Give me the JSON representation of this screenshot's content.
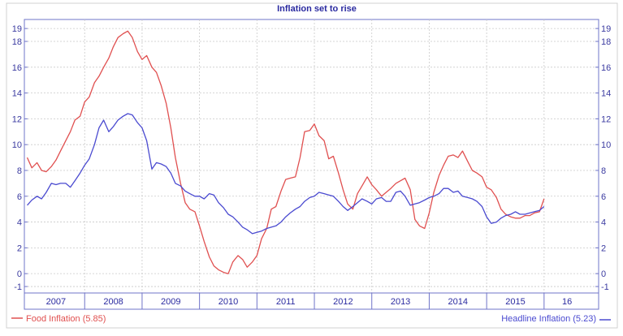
{
  "chart_data": {
    "type": "line",
    "title": "Inflation set to rise",
    "xlabel": "",
    "ylabel": "",
    "x_range": [
      2006.2,
      2016.2
    ],
    "ylim": [
      -1.5,
      19.7
    ],
    "y_ticks": [
      -1,
      0,
      2,
      4,
      6,
      8,
      10,
      12,
      14,
      16,
      18,
      19
    ],
    "y_tick_labels": [
      "-1",
      "0",
      "2",
      "4",
      "6",
      "8",
      "10",
      "12",
      "14",
      "16",
      "18",
      "19"
    ],
    "year_labels": [
      {
        "label": "2007",
        "x": 2006.75
      },
      {
        "label": "2008",
        "x": 2007.75
      },
      {
        "label": "2009",
        "x": 2008.75
      },
      {
        "label": "2010",
        "x": 2009.75
      },
      {
        "label": "2011",
        "x": 2010.75
      },
      {
        "label": "2012",
        "x": 2011.75
      },
      {
        "label": "2013",
        "x": 2012.75
      },
      {
        "label": "2014",
        "x": 2013.75
      },
      {
        "label": "2015",
        "x": 2014.75
      },
      {
        "label": "16",
        "x": 2015.65
      }
    ],
    "year_boundaries": [
      2007.25,
      2008.25,
      2009.25,
      2010.25,
      2011.25,
      2012.25,
      2013.25,
      2014.25,
      2015.25
    ],
    "grid": true,
    "legend_position": "bottom",
    "series": [
      {
        "name": "Food Inflation",
        "legend_label": "Food Inflation (5.85)",
        "color": "#e05050",
        "points": [
          [
            2006.25,
            9.0
          ],
          [
            2006.33,
            8.2
          ],
          [
            2006.42,
            8.6
          ],
          [
            2006.5,
            8.0
          ],
          [
            2006.58,
            7.9
          ],
          [
            2006.67,
            8.3
          ],
          [
            2006.75,
            8.8
          ],
          [
            2006.83,
            9.5
          ],
          [
            2006.92,
            10.3
          ],
          [
            2007.0,
            11.0
          ],
          [
            2007.08,
            11.9
          ],
          [
            2007.17,
            12.2
          ],
          [
            2007.25,
            13.3
          ],
          [
            2007.33,
            13.7
          ],
          [
            2007.42,
            14.8
          ],
          [
            2007.5,
            15.3
          ],
          [
            2007.58,
            16.0
          ],
          [
            2007.67,
            16.7
          ],
          [
            2007.75,
            17.6
          ],
          [
            2007.83,
            18.3
          ],
          [
            2007.92,
            18.6
          ],
          [
            2008.0,
            18.8
          ],
          [
            2008.08,
            18.3
          ],
          [
            2008.17,
            17.2
          ],
          [
            2008.25,
            16.6
          ],
          [
            2008.33,
            16.9
          ],
          [
            2008.42,
            16.0
          ],
          [
            2008.5,
            15.6
          ],
          [
            2008.58,
            14.6
          ],
          [
            2008.67,
            13.2
          ],
          [
            2008.75,
            11.3
          ],
          [
            2008.83,
            9.0
          ],
          [
            2008.92,
            7.0
          ],
          [
            2009.0,
            5.5
          ],
          [
            2009.08,
            5.0
          ],
          [
            2009.17,
            4.8
          ],
          [
            2009.25,
            3.7
          ],
          [
            2009.33,
            2.5
          ],
          [
            2009.42,
            1.3
          ],
          [
            2009.5,
            0.6
          ],
          [
            2009.58,
            0.3
          ],
          [
            2009.67,
            0.1
          ],
          [
            2009.75,
            0.0
          ],
          [
            2009.83,
            0.9
          ],
          [
            2009.92,
            1.4
          ],
          [
            2010.0,
            1.1
          ],
          [
            2010.08,
            0.5
          ],
          [
            2010.17,
            0.9
          ],
          [
            2010.25,
            1.4
          ],
          [
            2010.33,
            2.7
          ],
          [
            2010.42,
            3.5
          ],
          [
            2010.5,
            5.0
          ],
          [
            2010.58,
            5.2
          ],
          [
            2010.67,
            6.4
          ],
          [
            2010.75,
            7.3
          ],
          [
            2010.83,
            7.4
          ],
          [
            2010.92,
            7.5
          ],
          [
            2011.0,
            9.0
          ],
          [
            2011.08,
            11.0
          ],
          [
            2011.17,
            11.1
          ],
          [
            2011.25,
            11.6
          ],
          [
            2011.33,
            10.7
          ],
          [
            2011.42,
            10.3
          ],
          [
            2011.5,
            8.9
          ],
          [
            2011.58,
            9.1
          ],
          [
            2011.67,
            7.8
          ],
          [
            2011.75,
            6.5
          ],
          [
            2011.83,
            5.4
          ],
          [
            2011.92,
            5.0
          ],
          [
            2012.0,
            6.2
          ],
          [
            2012.08,
            6.8
          ],
          [
            2012.17,
            7.5
          ],
          [
            2012.25,
            6.9
          ],
          [
            2012.33,
            6.5
          ],
          [
            2012.42,
            6.0
          ],
          [
            2012.5,
            6.3
          ],
          [
            2012.58,
            6.6
          ],
          [
            2012.67,
            7.0
          ],
          [
            2012.75,
            7.2
          ],
          [
            2012.83,
            7.4
          ],
          [
            2012.92,
            6.5
          ],
          [
            2013.0,
            4.2
          ],
          [
            2013.08,
            3.7
          ],
          [
            2013.17,
            3.5
          ],
          [
            2013.25,
            4.7
          ],
          [
            2013.33,
            6.3
          ],
          [
            2013.42,
            7.6
          ],
          [
            2013.5,
            8.4
          ],
          [
            2013.58,
            9.1
          ],
          [
            2013.67,
            9.2
          ],
          [
            2013.75,
            9.0
          ],
          [
            2013.83,
            9.5
          ],
          [
            2013.92,
            8.7
          ],
          [
            2014.0,
            8.0
          ],
          [
            2014.08,
            7.8
          ],
          [
            2014.17,
            7.5
          ],
          [
            2014.25,
            6.7
          ],
          [
            2014.33,
            6.5
          ],
          [
            2014.42,
            5.9
          ],
          [
            2014.5,
            5.0
          ],
          [
            2014.58,
            4.6
          ],
          [
            2014.67,
            4.4
          ],
          [
            2014.75,
            4.3
          ],
          [
            2014.83,
            4.3
          ],
          [
            2014.92,
            4.5
          ],
          [
            2015.0,
            4.5
          ],
          [
            2015.08,
            4.7
          ],
          [
            2015.17,
            4.8
          ],
          [
            2015.25,
            5.8
          ]
        ]
      },
      {
        "name": "Headline Inflation",
        "legend_label": "Headline Inflation (5.23)",
        "color": "#4a4ad0",
        "points": [
          [
            2006.25,
            5.3
          ],
          [
            2006.33,
            5.7
          ],
          [
            2006.42,
            6.0
          ],
          [
            2006.5,
            5.8
          ],
          [
            2006.58,
            6.3
          ],
          [
            2006.67,
            7.0
          ],
          [
            2006.75,
            6.9
          ],
          [
            2006.83,
            7.0
          ],
          [
            2006.92,
            7.0
          ],
          [
            2007.0,
            6.7
          ],
          [
            2007.08,
            7.2
          ],
          [
            2007.17,
            7.8
          ],
          [
            2007.25,
            8.4
          ],
          [
            2007.33,
            8.9
          ],
          [
            2007.42,
            10.0
          ],
          [
            2007.5,
            11.3
          ],
          [
            2007.58,
            11.9
          ],
          [
            2007.67,
            11.0
          ],
          [
            2007.75,
            11.4
          ],
          [
            2007.83,
            11.9
          ],
          [
            2007.92,
            12.2
          ],
          [
            2008.0,
            12.4
          ],
          [
            2008.08,
            12.3
          ],
          [
            2008.17,
            11.7
          ],
          [
            2008.25,
            11.3
          ],
          [
            2008.33,
            10.3
          ],
          [
            2008.42,
            8.1
          ],
          [
            2008.5,
            8.6
          ],
          [
            2008.58,
            8.5
          ],
          [
            2008.67,
            8.3
          ],
          [
            2008.75,
            7.8
          ],
          [
            2008.83,
            7.0
          ],
          [
            2008.92,
            6.8
          ],
          [
            2009.0,
            6.4
          ],
          [
            2009.08,
            6.2
          ],
          [
            2009.17,
            6.0
          ],
          [
            2009.25,
            6.0
          ],
          [
            2009.33,
            5.8
          ],
          [
            2009.42,
            6.2
          ],
          [
            2009.5,
            6.1
          ],
          [
            2009.58,
            5.5
          ],
          [
            2009.67,
            5.1
          ],
          [
            2009.75,
            4.6
          ],
          [
            2009.83,
            4.4
          ],
          [
            2009.92,
            4.0
          ],
          [
            2010.0,
            3.6
          ],
          [
            2010.08,
            3.4
          ],
          [
            2010.17,
            3.1
          ],
          [
            2010.25,
            3.2
          ],
          [
            2010.33,
            3.3
          ],
          [
            2010.42,
            3.5
          ],
          [
            2010.5,
            3.6
          ],
          [
            2010.58,
            3.7
          ],
          [
            2010.67,
            4.0
          ],
          [
            2010.75,
            4.4
          ],
          [
            2010.83,
            4.7
          ],
          [
            2010.92,
            5.0
          ],
          [
            2011.0,
            5.2
          ],
          [
            2011.08,
            5.6
          ],
          [
            2011.17,
            5.9
          ],
          [
            2011.25,
            6.0
          ],
          [
            2011.33,
            6.3
          ],
          [
            2011.42,
            6.2
          ],
          [
            2011.5,
            6.1
          ],
          [
            2011.58,
            6.0
          ],
          [
            2011.67,
            5.6
          ],
          [
            2011.75,
            5.2
          ],
          [
            2011.83,
            4.9
          ],
          [
            2011.92,
            5.2
          ],
          [
            2012.0,
            5.5
          ],
          [
            2012.08,
            5.8
          ],
          [
            2012.17,
            5.6
          ],
          [
            2012.25,
            5.4
          ],
          [
            2012.33,
            5.8
          ],
          [
            2012.42,
            5.9
          ],
          [
            2012.5,
            5.6
          ],
          [
            2012.58,
            5.6
          ],
          [
            2012.67,
            6.3
          ],
          [
            2012.75,
            6.4
          ],
          [
            2012.83,
            6.0
          ],
          [
            2012.92,
            5.3
          ],
          [
            2013.0,
            5.4
          ],
          [
            2013.08,
            5.5
          ],
          [
            2013.17,
            5.7
          ],
          [
            2013.25,
            5.9
          ],
          [
            2013.33,
            6.0
          ],
          [
            2013.42,
            6.2
          ],
          [
            2013.5,
            6.6
          ],
          [
            2013.58,
            6.6
          ],
          [
            2013.67,
            6.3
          ],
          [
            2013.75,
            6.4
          ],
          [
            2013.83,
            6.0
          ],
          [
            2013.92,
            5.9
          ],
          [
            2014.0,
            5.8
          ],
          [
            2014.08,
            5.6
          ],
          [
            2014.17,
            5.2
          ],
          [
            2014.25,
            4.4
          ],
          [
            2014.33,
            3.9
          ],
          [
            2014.42,
            4.0
          ],
          [
            2014.5,
            4.3
          ],
          [
            2014.58,
            4.5
          ],
          [
            2014.67,
            4.6
          ],
          [
            2014.75,
            4.8
          ],
          [
            2014.83,
            4.6
          ],
          [
            2014.92,
            4.6
          ],
          [
            2015.0,
            4.7
          ],
          [
            2015.08,
            4.8
          ],
          [
            2015.17,
            4.9
          ],
          [
            2015.25,
            5.2
          ]
        ]
      }
    ]
  }
}
